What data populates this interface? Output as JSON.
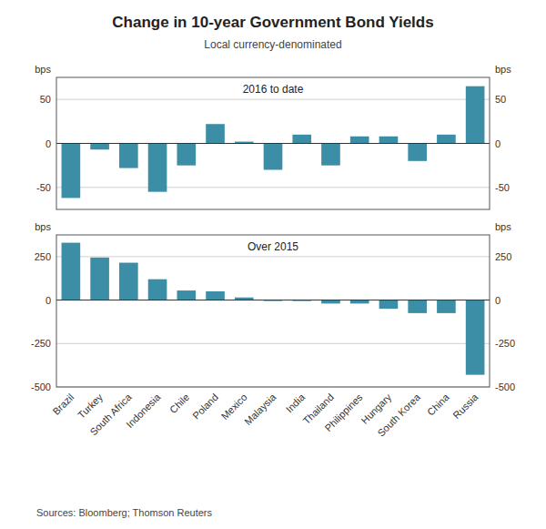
{
  "chart_data": [
    {
      "type": "bar",
      "title": "Change in 10-year Government Bond Yields",
      "subtitle": "Local currency-denominated",
      "annotations": [
        "2016 to date"
      ],
      "y_label": "bps",
      "categories": [
        "Brazil",
        "Turkey",
        "South Africa",
        "Indonesia",
        "Chile",
        "Poland",
        "Mexico",
        "Malaysia",
        "India",
        "Thailand",
        "Philippines",
        "Hungary",
        "South Korea",
        "China",
        "Russia"
      ],
      "values": [
        -62,
        -7,
        -28,
        -55,
        -25,
        22,
        2,
        -30,
        10,
        -25,
        8,
        8,
        -20,
        10,
        65
      ],
      "color": "#3b8ea5",
      "ylim": [
        -75,
        75
      ],
      "yticks": [
        -50,
        0,
        50
      ],
      "grid": true,
      "tick_labels": "y"
    },
    {
      "type": "bar",
      "annotations": [
        "Over 2015"
      ],
      "y_label": "bps",
      "source": "Sources:   Bloomberg; Thomson Reuters",
      "categories": [
        "Brazil",
        "Turkey",
        "South Africa",
        "Indonesia",
        "Chile",
        "Poland",
        "Mexico",
        "Malaysia",
        "India",
        "Thailand",
        "Philippines",
        "Hungary",
        "South Korea",
        "China",
        "Russia"
      ],
      "values": [
        330,
        245,
        215,
        120,
        55,
        50,
        15,
        -5,
        -5,
        -20,
        -20,
        -50,
        -75,
        -75,
        -430
      ],
      "color": "#3b8ea5",
      "ylim": [
        -500,
        375
      ],
      "yticks": [
        -500,
        -250,
        0,
        250
      ],
      "grid": true
    }
  ]
}
